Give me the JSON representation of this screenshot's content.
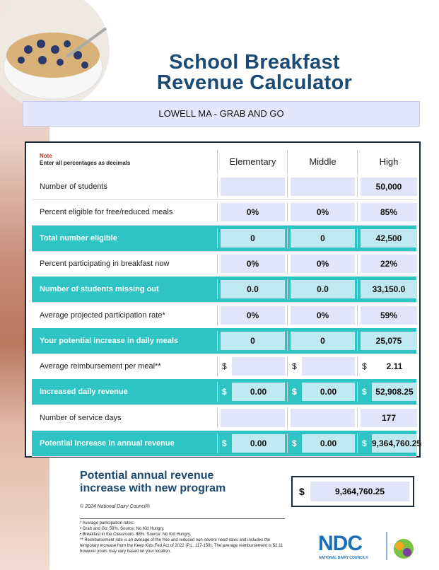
{
  "header": {
    "title_lines": [
      "School Breakfast",
      "Revenue Calculator"
    ],
    "subtitle": "LOWELL MA - GRAB AND GO"
  },
  "table": {
    "note_label": "Note",
    "note": "Enter all percentages as decimals",
    "columns": [
      "Elementary",
      "Middle",
      "High"
    ],
    "currency_symbol": "$",
    "rows": [
      {
        "label": "Number of students",
        "values": [
          null,
          null,
          "50,000"
        ]
      },
      {
        "label": "Percent eligible for free/reduced meals",
        "values": [
          "0%",
          "0%",
          "85%"
        ]
      },
      {
        "label": "Total number eligible",
        "values": [
          "0",
          "0",
          "42,500"
        ]
      },
      {
        "label": "Percent participating in breakfast now",
        "values": [
          "0%",
          "0%",
          "22%"
        ]
      },
      {
        "label": "Number of students missing out",
        "values": [
          "0.0",
          "0.0",
          "33,150.0"
        ]
      },
      {
        "label": "Average projected participation rate*",
        "values": [
          "0%",
          "0%",
          "59%"
        ]
      },
      {
        "label": "Your potential increase in daily meals",
        "values": [
          "0",
          "0",
          "25,075"
        ]
      },
      {
        "label": "Average reimbursement per meal**",
        "values": [
          null,
          null,
          "2.11"
        ]
      },
      {
        "label": "Increased daily revenue",
        "values": [
          "0.00",
          "0.00",
          "52,908.25"
        ]
      },
      {
        "label": "Number of service days",
        "values": [
          null,
          null,
          "177"
        ]
      },
      {
        "label": "Potential increase in annual revenue",
        "values": [
          "0.00",
          "0.00",
          "9,364,760.25"
        ]
      }
    ]
  },
  "summary": {
    "title_lines": [
      "Potential annual revenue",
      "increase with new program"
    ],
    "total": "9,364,760.25",
    "copyright": "© 2024 National Dairy Council®"
  },
  "footnotes": [
    "* Average participation rates:",
    "• Grab and Go: 59%. Source: No Kid Hungry.",
    "• Breakfast in the Classroom: 88%. Source: No Kid Hungry.",
    "** Reimbursement rate is an average of the free and reduced non-severe need rates and includes the temporary increase from the Keep Kids Fed Act of 2022 (P.L. 117-158). The average reimbursement is $2.11 however yours may vary based on your location."
  ],
  "logo": {
    "name": "NDC",
    "subtitle": "NATIONAL DAIRY COUNCIL®"
  }
}
